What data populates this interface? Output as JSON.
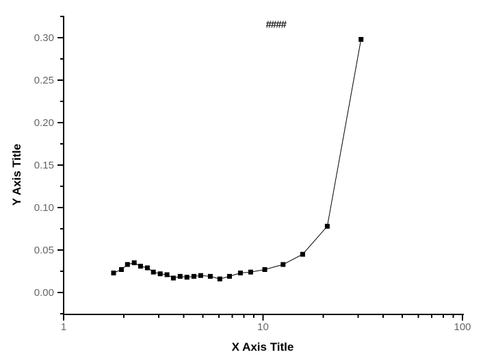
{
  "colors": {
    "background": "#ffffff",
    "axis_and_data": "#000000",
    "tick_labels": "#666666",
    "annotation_text": "#1a1a1a"
  },
  "chart_data": {
    "type": "line",
    "title": "",
    "annotation": "####",
    "xlabel": "X Axis Title",
    "ylabel": "Y Axis Title",
    "xscale": "log",
    "yscale": "linear",
    "xlim": [
      1,
      100
    ],
    "ylim": [
      -0.027,
      0.326
    ],
    "grid": false,
    "legend": "none",
    "x_major_ticks": {
      "values": [
        1,
        10,
        100
      ],
      "labels": [
        "1",
        "10",
        "100"
      ]
    },
    "x_minor_ticks": [
      2,
      3,
      4,
      5,
      6,
      7,
      8,
      9,
      20,
      30,
      40,
      50,
      60,
      70,
      80,
      90
    ],
    "y_major_ticks": {
      "values": [
        0.0,
        0.05,
        0.1,
        0.15,
        0.2,
        0.25,
        0.3
      ],
      "labels": [
        "0.00",
        "0.05",
        "0.10",
        "0.15",
        "0.20",
        "0.25",
        "0.30"
      ]
    },
    "y_minor_ticks": [
      -0.025,
      0.025,
      0.075,
      0.125,
      0.175,
      0.225,
      0.275,
      0.325
    ],
    "series": [
      {
        "name": "series1",
        "marker": "filled-square",
        "color": "#000000",
        "points": [
          [
            1.78,
            0.023
          ],
          [
            1.95,
            0.027
          ],
          [
            2.09,
            0.033
          ],
          [
            2.26,
            0.035
          ],
          [
            2.43,
            0.031
          ],
          [
            2.63,
            0.029
          ],
          [
            2.82,
            0.024
          ],
          [
            3.05,
            0.022
          ],
          [
            3.3,
            0.021
          ],
          [
            3.55,
            0.017
          ],
          [
            3.84,
            0.019
          ],
          [
            4.15,
            0.018
          ],
          [
            4.5,
            0.019
          ],
          [
            4.87,
            0.02
          ],
          [
            5.44,
            0.019
          ],
          [
            6.07,
            0.016
          ],
          [
            6.79,
            0.019
          ],
          [
            7.7,
            0.023
          ],
          [
            8.67,
            0.024
          ],
          [
            10.2,
            0.027
          ],
          [
            12.6,
            0.033
          ],
          [
            15.8,
            0.045
          ],
          [
            21.0,
            0.078
          ],
          [
            31.0,
            0.298
          ]
        ]
      }
    ]
  }
}
